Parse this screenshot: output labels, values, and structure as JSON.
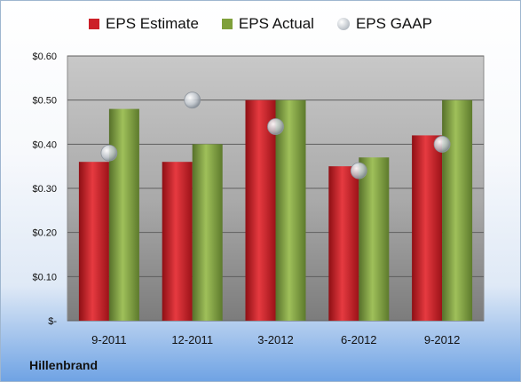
{
  "company": "Hillenbrand",
  "colors": {
    "estimate": "#cc1f28",
    "actual": "#7fa03a",
    "gaap": "#b8bfc8"
  },
  "chart_data": {
    "type": "bar",
    "categories": [
      "9-2011",
      "12-2011",
      "3-2012",
      "6-2012",
      "9-2012"
    ],
    "series": [
      {
        "name": "EPS Estimate",
        "kind": "bar",
        "values": [
          0.36,
          0.36,
          0.5,
          0.35,
          0.42
        ]
      },
      {
        "name": "EPS Actual",
        "kind": "bar",
        "values": [
          0.48,
          0.4,
          0.5,
          0.37,
          0.5
        ]
      },
      {
        "name": "EPS GAAP",
        "kind": "scatter",
        "values": [
          0.38,
          0.5,
          0.44,
          0.34,
          0.4
        ]
      }
    ],
    "ylim": [
      0,
      0.6
    ],
    "yticks": [
      0,
      0.1,
      0.2,
      0.3,
      0.4,
      0.5,
      0.6
    ],
    "ytick_labels": [
      "$-",
      "$0.10",
      "$0.20",
      "$0.30",
      "$0.40",
      "$0.50",
      "$0.60"
    ],
    "legend": "top",
    "grid": true
  }
}
